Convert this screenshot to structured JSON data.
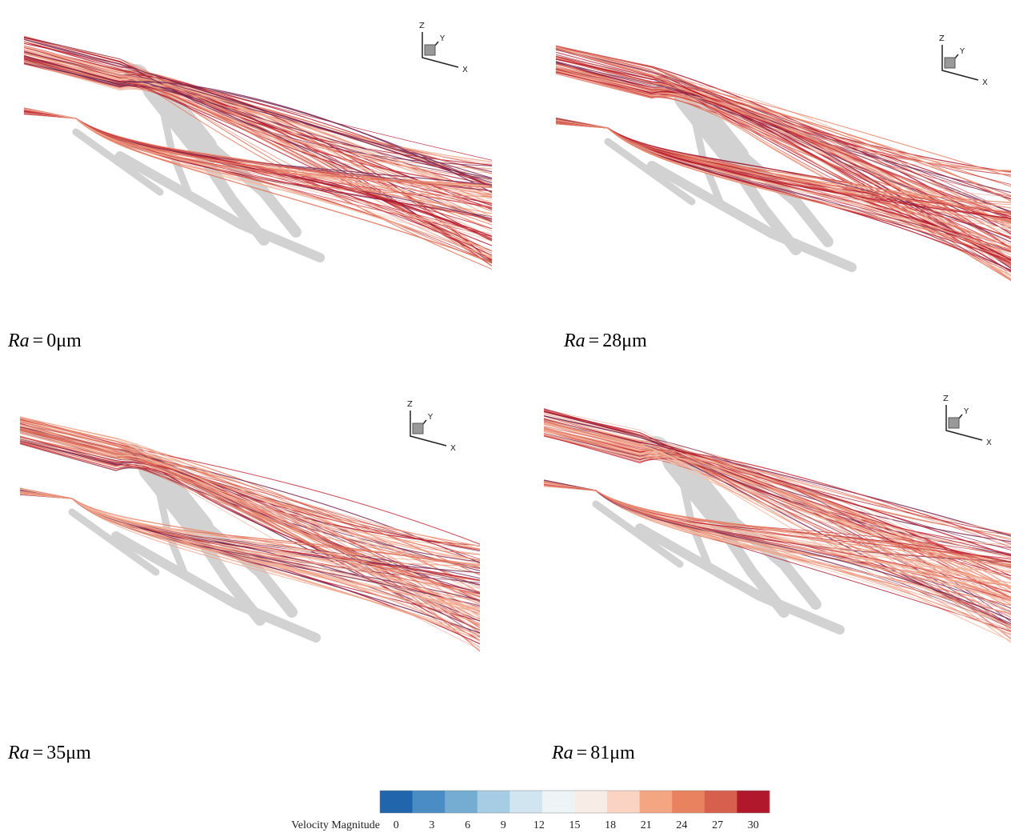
{
  "panels": [
    {
      "caption": {
        "symbol": "Ra",
        "operator": "=",
        "value": "0μm"
      },
      "axes_labels": {
        "z": "Z",
        "y": "Y",
        "x": "X"
      }
    },
    {
      "caption": {
        "symbol": "Ra",
        "operator": "=",
        "value": "28μm"
      },
      "axes_labels": {
        "z": "Z",
        "y": "Y",
        "x": "X"
      }
    },
    {
      "caption": {
        "symbol": "Ra",
        "operator": "=",
        "value": "35μm"
      },
      "axes_labels": {
        "z": "Z",
        "y": "Y",
        "x": "X"
      }
    },
    {
      "caption": {
        "symbol": "Ra",
        "operator": "=",
        "value": "81μm"
      },
      "axes_labels": {
        "z": "Z",
        "y": "Y",
        "x": "X"
      }
    }
  ],
  "colorbar": {
    "title": "Velocity Magnitude",
    "ticks": [
      0,
      3,
      6,
      9,
      12,
      15,
      18,
      21,
      24,
      27,
      30
    ],
    "colors": [
      "#2166ac",
      "#4a8cc4",
      "#74add1",
      "#a6cde3",
      "#d1e5f0",
      "#eef3f6",
      "#f8ece6",
      "#fbd3c3",
      "#f4a582",
      "#e9825f",
      "#d6604d",
      "#b2182b"
    ]
  }
}
